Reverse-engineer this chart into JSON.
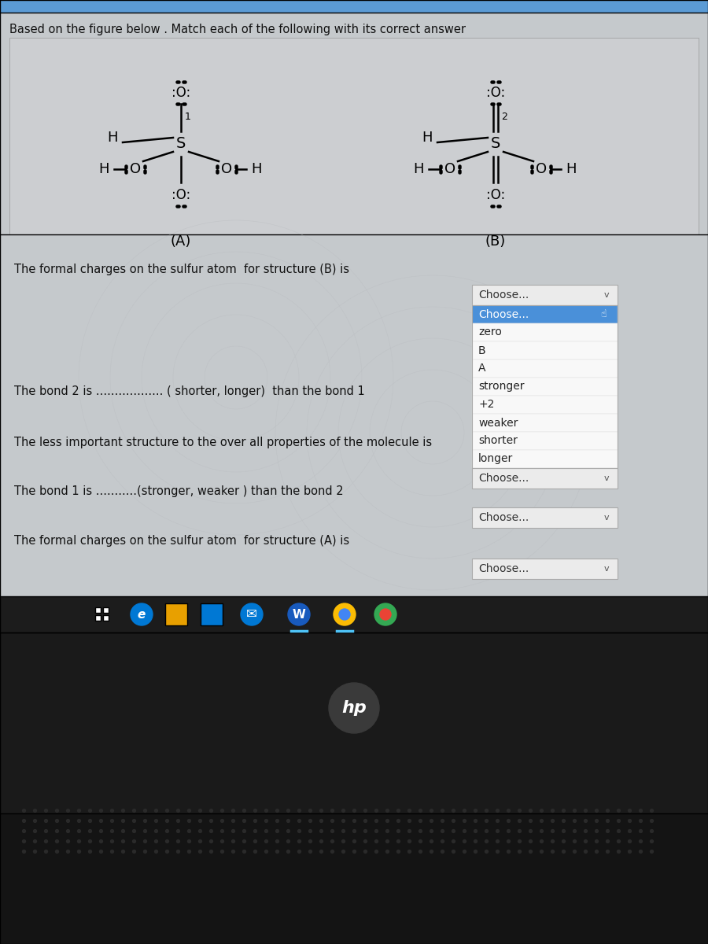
{
  "title": "Based on the figure below . Match each of the following with its correct answer",
  "bg_color_outer": "#c5c9cc",
  "bg_color_diagram": "#ccced1",
  "bg_color_questions": "#c5c9cc",
  "label_A": "(A)",
  "label_B": "(B)",
  "q1": "The formal charges on the sulfur atom  for structure (B) is",
  "q2": "The bond 2 is .................. ( shorter, longer)  than the bond 1",
  "q3": "The less important structure to the over all properties of the molecule is",
  "q4": "The bond 1 is ...........(stronger, weaker ) than the bond 2",
  "q5": "The formal charges on the sulfur atom  for structure (A) is",
  "dropdown_text": "Choose...",
  "dropdown_chevron": "v",
  "dropdown_open_items": [
    "Choose...",
    "zero",
    "B",
    "A",
    "stronger",
    "+2",
    "weaker",
    "shorter",
    "longer"
  ],
  "dropdown_color_header": "#ebebeb",
  "dropdown_color_selected": "#4a90d9",
  "dropdown_color_items": "#f8f8f8",
  "dropdown_border": "#aaaaaa",
  "screen_bg": "#1a1a1a",
  "taskbar_bg": "#1c1c1c",
  "laptop_body": "#0d0d0d",
  "speaker_dot": "#2a2a2a"
}
